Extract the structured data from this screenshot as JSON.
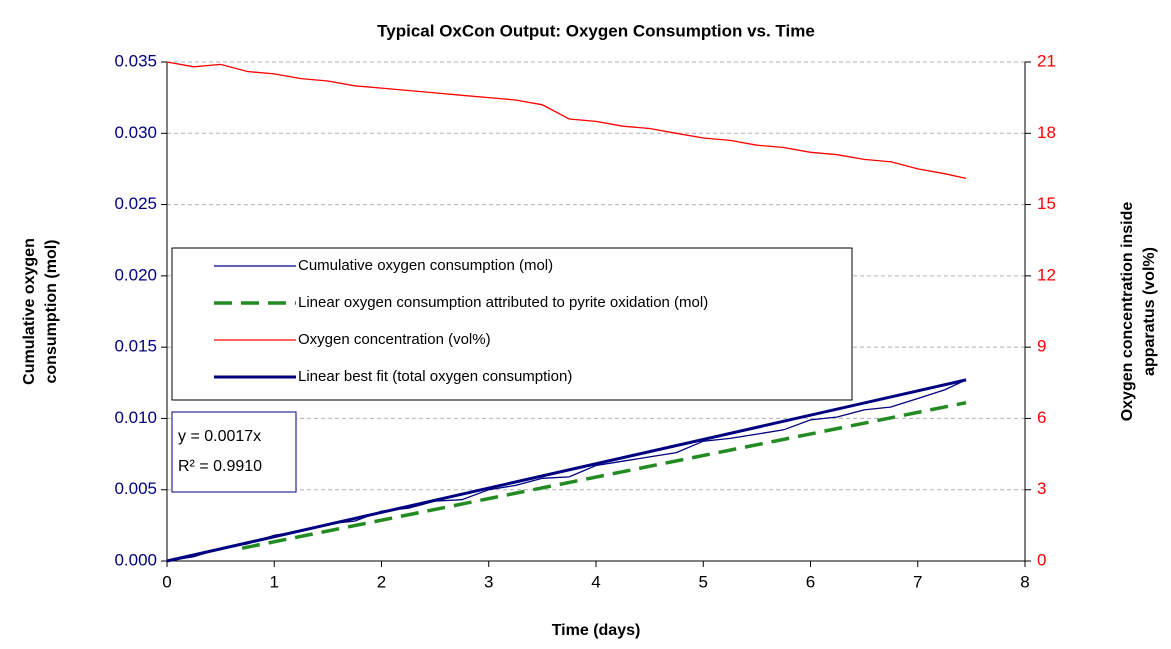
{
  "chart_data": {
    "type": "line",
    "title": "Typical OxCon Output: Oxygen Consumption vs. Time",
    "xlabel": "Time (days)",
    "ylabel": [
      "Cumulative oxygen",
      "consumption (mol)"
    ],
    "y2label": [
      "Oxygen concentration inside",
      "apparatus (vol%)"
    ],
    "xlim": [
      0,
      8
    ],
    "xticks": [
      0,
      1,
      2,
      3,
      4,
      5,
      6,
      7,
      8
    ],
    "ylim": [
      0,
      0.035
    ],
    "yticks": [
      {
        "value": 0,
        "label": "0.000"
      },
      {
        "value": 0.005,
        "label": "0.005"
      },
      {
        "value": 0.01,
        "label": "0.010"
      },
      {
        "value": 0.015,
        "label": "0.015"
      },
      {
        "value": 0.02,
        "label": "0.020"
      },
      {
        "value": 0.025,
        "label": "0.025"
      },
      {
        "value": 0.03,
        "label": "0.030"
      },
      {
        "value": 0.035,
        "label": "0.035"
      }
    ],
    "y2lim": [
      0,
      21
    ],
    "y2ticks": [
      0,
      3,
      6,
      9,
      12,
      15,
      18,
      21
    ],
    "grid": true,
    "series": [
      {
        "name": "Cumulative oxygen consumption (mol)",
        "color": "#000080",
        "style": "solid",
        "x": [
          0,
          0.25,
          0.5,
          0.75,
          1,
          1.25,
          1.5,
          1.75,
          2,
          2.25,
          2.5,
          2.75,
          3,
          3.25,
          3.5,
          3.75,
          4,
          4.25,
          4.5,
          4.75,
          5,
          5.25,
          5.5,
          5.75,
          6,
          6.25,
          6.5,
          6.75,
          7,
          7.25,
          7.45
        ],
        "values": [
          0.0,
          0.0003,
          0.0009,
          0.0012,
          0.0018,
          0.0021,
          0.0026,
          0.0028,
          0.0035,
          0.0037,
          0.0042,
          0.0043,
          0.005,
          0.0053,
          0.0058,
          0.0059,
          0.0067,
          0.007,
          0.0073,
          0.0076,
          0.0084,
          0.0086,
          0.0089,
          0.0092,
          0.0099,
          0.0101,
          0.0106,
          0.0108,
          0.0114,
          0.012,
          0.0127
        ]
      },
      {
        "name": "Linear oxygen consumption attributed to pyrite oxidation (mol)",
        "color": "#228b22",
        "style": "dashed",
        "x": [
          0.7,
          7.45
        ],
        "values": [
          0.0009,
          0.0111
        ]
      },
      {
        "name": "Oxygen concentration (vol%)",
        "color": "#ff0000",
        "style": "solid",
        "axis": "y2",
        "x": [
          0,
          0.25,
          0.5,
          0.75,
          1,
          1.25,
          1.5,
          1.75,
          2,
          2.25,
          2.5,
          2.75,
          3,
          3.25,
          3.5,
          3.75,
          4,
          4.25,
          4.5,
          4.75,
          5,
          5.25,
          5.5,
          5.75,
          6,
          6.25,
          6.5,
          6.75,
          7,
          7.25,
          7.45
        ],
        "values": [
          21.0,
          20.8,
          20.9,
          20.6,
          20.5,
          20.3,
          20.2,
          20.0,
          19.9,
          19.8,
          19.7,
          19.6,
          19.5,
          19.4,
          19.2,
          18.6,
          18.5,
          18.3,
          18.2,
          18.0,
          17.8,
          17.7,
          17.5,
          17.4,
          17.2,
          17.1,
          16.9,
          16.8,
          16.5,
          16.3,
          16.1
        ]
      },
      {
        "name": "Linear best fit (total oxygen consumption)",
        "color": "#000080",
        "style": "thick",
        "x": [
          0,
          7.45
        ],
        "values": [
          0,
          0.0127
        ]
      }
    ],
    "annotations": [
      "y = 0.0017x",
      "R² = 0.9910"
    ]
  }
}
